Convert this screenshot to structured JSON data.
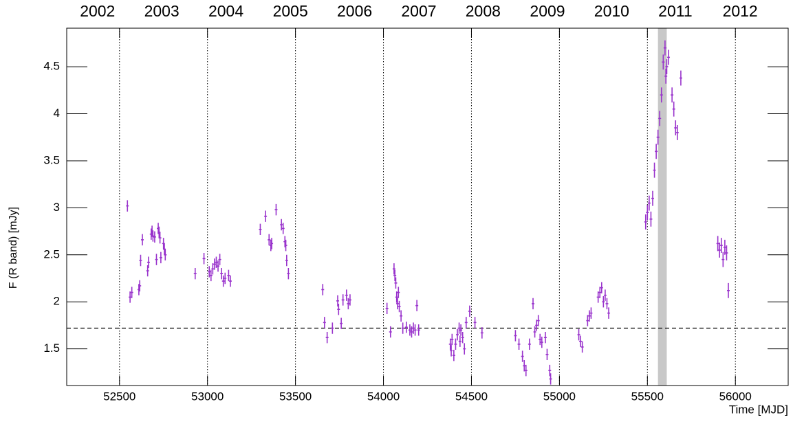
{
  "chart_data": {
    "type": "scatter",
    "x_label": "Time [MJD]",
    "y_label": "F (R band) [mJy]",
    "color": "#9933cc",
    "x": [
      52545,
      52560,
      52570,
      52610,
      52615,
      52620,
      52630,
      52660,
      52665,
      52680,
      52685,
      52690,
      52700,
      52710,
      52720,
      52725,
      52730,
      52735,
      52750,
      52755,
      52760,
      52930,
      52980,
      53010,
      53020,
      53030,
      53040,
      53050,
      53060,
      53070,
      53080,
      53090,
      53100,
      53120,
      53130,
      53300,
      53330,
      53350,
      53360,
      53365,
      53390,
      53420,
      53430,
      53440,
      53445,
      53450,
      53460,
      53655,
      53665,
      53680,
      53710,
      53740,
      53745,
      53760,
      53770,
      53790,
      53800,
      53810,
      54020,
      54040,
      54060,
      54065,
      54070,
      54075,
      54080,
      54085,
      54090,
      54100,
      54110,
      54130,
      54150,
      54160,
      54170,
      54180,
      54190,
      54200,
      54380,
      54385,
      54390,
      54400,
      54410,
      54420,
      54430,
      54435,
      54440,
      54450,
      54460,
      54470,
      54490,
      54520,
      54560,
      54750,
      54770,
      54790,
      54800,
      54810,
      54830,
      54850,
      54860,
      54870,
      54880,
      54890,
      54900,
      54920,
      54930,
      54945,
      54950,
      55110,
      55120,
      55130,
      55160,
      55170,
      55180,
      55220,
      55230,
      55240,
      55250,
      55260,
      55270,
      55280,
      55490,
      55500,
      55510,
      55520,
      55530,
      55540,
      55550,
      55560,
      55570,
      55580,
      55590,
      55600,
      55605,
      55610,
      55620,
      55640,
      55650,
      55660,
      55670,
      55690,
      55900,
      55910,
      55920,
      55930,
      55940,
      55950,
      55960
    ],
    "values": [
      3.02,
      2.05,
      2.1,
      2.13,
      2.17,
      2.44,
      2.66,
      2.33,
      2.42,
      2.72,
      2.75,
      2.7,
      2.69,
      2.45,
      2.78,
      2.74,
      2.68,
      2.47,
      2.62,
      2.56,
      2.5,
      2.3,
      2.46,
      2.32,
      2.28,
      2.35,
      2.4,
      2.42,
      2.38,
      2.45,
      2.3,
      2.22,
      2.25,
      2.28,
      2.22,
      2.77,
      2.91,
      2.66,
      2.6,
      2.62,
      2.98,
      2.82,
      2.78,
      2.64,
      2.6,
      2.44,
      2.3,
      2.13,
      1.78,
      1.62,
      1.72,
      2.01,
      1.92,
      1.77,
      2.02,
      2.07,
      1.98,
      2.02,
      1.93,
      1.68,
      2.35,
      2.28,
      2.2,
      2.05,
      1.98,
      2.1,
      1.95,
      1.85,
      1.72,
      1.73,
      1.7,
      1.68,
      1.72,
      1.7,
      1.96,
      1.7,
      1.55,
      1.48,
      1.6,
      1.43,
      1.55,
      1.65,
      1.72,
      1.58,
      1.7,
      1.62,
      1.5,
      1.78,
      1.9,
      1.78,
      1.67,
      1.64,
      1.55,
      1.42,
      1.32,
      1.27,
      1.55,
      1.98,
      1.68,
      1.75,
      1.8,
      1.6,
      1.57,
      1.62,
      1.44,
      1.27,
      1.18,
      1.65,
      1.58,
      1.52,
      1.8,
      1.85,
      1.88,
      2.05,
      2.1,
      2.15,
      2.0,
      2.07,
      1.98,
      1.88,
      2.85,
      2.95,
      3.05,
      2.88,
      3.1,
      3.4,
      3.6,
      3.75,
      3.95,
      4.2,
      4.55,
      4.7,
      4.4,
      4.5,
      4.6,
      4.2,
      4.05,
      3.85,
      3.8,
      4.38,
      2.62,
      2.55,
      2.6,
      2.45,
      2.58,
      2.52,
      2.12
    ],
    "errors": [
      0.06,
      0.06,
      0.06,
      0.06,
      0.06,
      0.06,
      0.06,
      0.06,
      0.06,
      0.06,
      0.06,
      0.06,
      0.06,
      0.06,
      0.06,
      0.06,
      0.06,
      0.06,
      0.06,
      0.06,
      0.06,
      0.06,
      0.06,
      0.06,
      0.06,
      0.06,
      0.06,
      0.06,
      0.06,
      0.06,
      0.06,
      0.06,
      0.06,
      0.06,
      0.06,
      0.06,
      0.06,
      0.06,
      0.06,
      0.06,
      0.06,
      0.06,
      0.06,
      0.06,
      0.06,
      0.06,
      0.06,
      0.06,
      0.06,
      0.06,
      0.06,
      0.06,
      0.06,
      0.06,
      0.06,
      0.06,
      0.06,
      0.06,
      0.06,
      0.06,
      0.06,
      0.06,
      0.06,
      0.06,
      0.06,
      0.06,
      0.06,
      0.06,
      0.06,
      0.06,
      0.06,
      0.06,
      0.06,
      0.06,
      0.06,
      0.06,
      0.06,
      0.06,
      0.06,
      0.06,
      0.06,
      0.06,
      0.06,
      0.06,
      0.06,
      0.06,
      0.06,
      0.06,
      0.06,
      0.06,
      0.06,
      0.06,
      0.06,
      0.06,
      0.06,
      0.06,
      0.06,
      0.06,
      0.06,
      0.06,
      0.06,
      0.06,
      0.06,
      0.06,
      0.06,
      0.06,
      0.06,
      0.06,
      0.06,
      0.06,
      0.06,
      0.06,
      0.06,
      0.06,
      0.06,
      0.06,
      0.06,
      0.06,
      0.06,
      0.06,
      0.08,
      0.08,
      0.08,
      0.08,
      0.08,
      0.08,
      0.08,
      0.08,
      0.08,
      0.08,
      0.08,
      0.08,
      0.08,
      0.08,
      0.08,
      0.08,
      0.08,
      0.08,
      0.08,
      0.08,
      0.08,
      0.08,
      0.08,
      0.08,
      0.08,
      0.08,
      0.08
    ],
    "xlim": [
      52200,
      56300
    ],
    "ylim": [
      1.11,
      4.91
    ],
    "xticks": [
      52500,
      53000,
      53500,
      54000,
      54500,
      55000,
      55500,
      56000
    ],
    "yticks": [
      1.5,
      2,
      2.5,
      3,
      3.5,
      4,
      4.5
    ],
    "top_ticks": [
      {
        "value": 52275,
        "label": "2002"
      },
      {
        "value": 52640,
        "label": "2003"
      },
      {
        "value": 53005,
        "label": "2004"
      },
      {
        "value": 53371,
        "label": "2005"
      },
      {
        "value": 53736,
        "label": "2006"
      },
      {
        "value": 54101,
        "label": "2007"
      },
      {
        "value": 54466,
        "label": "2008"
      },
      {
        "value": 54832,
        "label": "2009"
      },
      {
        "value": 55197,
        "label": "2010"
      },
      {
        "value": 55562,
        "label": "2011"
      },
      {
        "value": 55927,
        "label": "2012"
      }
    ],
    "x_grid": true,
    "hline": 1.72,
    "shaded_region": [
      55560,
      55610
    ],
    "shade_color": "#c8c8c8"
  }
}
